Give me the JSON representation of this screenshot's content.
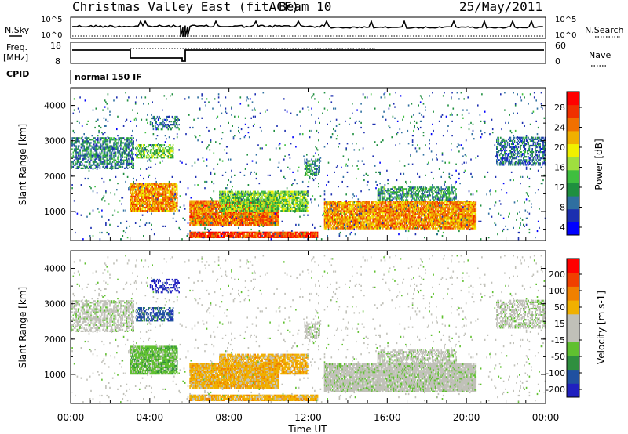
{
  "header": {
    "site": "Christmas Valley East (fitACF)",
    "beam": "Beam 10",
    "date": "25/May/2011"
  },
  "top_panels": {
    "nsky_label": "N.Sky",
    "nsky_ticks": [
      "10^5",
      "10^0"
    ],
    "nsearch_label": "N.Search",
    "freq_label": "Freq.",
    "freq_unit": "[MHz]",
    "freq_ticks": [
      "18",
      "8"
    ],
    "nave_label": "Nave",
    "nave_ticks": [
      "60",
      "0"
    ],
    "cpid_label": "CPID",
    "cpid_value": "normal 150 IF"
  },
  "chart_data": [
    {
      "type": "heatmap",
      "name": "power",
      "ylabel": "Slant Range [km]",
      "yticks": [
        "4000",
        "3000",
        "2000",
        "1000"
      ],
      "ylim": [
        180,
        4500
      ],
      "colorbar_label": "Power [dB]",
      "colorbar_ticks": [
        "28",
        "24",
        "20",
        "16",
        "12",
        "8",
        "4"
      ],
      "colorbar_colors": [
        "#0000ff",
        "#1c2fb0",
        "#2f6fa0",
        "#1f8f3f",
        "#3fbf3f",
        "#9fdf3f",
        "#f0f000",
        "#f0b000",
        "#f07000",
        "#f03000",
        "#ff0000"
      ]
    },
    {
      "type": "heatmap",
      "name": "velocity",
      "ylabel": "Slant Range [km]",
      "yticks": [
        "4000",
        "3000",
        "2000",
        "1000"
      ],
      "ylim": [
        180,
        4500
      ],
      "colorbar_label": "Velocity [m s-1]",
      "colorbar_ticks": [
        "200",
        "100",
        "50",
        "15",
        "-15",
        "-50",
        "-100",
        "-200"
      ],
      "colorbar_colors": [
        "#2020c0",
        "#2050a0",
        "#2f8f3f",
        "#60c030",
        "#c0c0b8",
        "#c0c0b8",
        "#f0b000",
        "#f08000",
        "#f04000",
        "#ff0000"
      ]
    }
  ],
  "x_axis": {
    "ticks": [
      "00:00",
      "04:00",
      "08:00",
      "12:00",
      "16:00",
      "20:00",
      "00:00"
    ],
    "label": "Time UT"
  }
}
